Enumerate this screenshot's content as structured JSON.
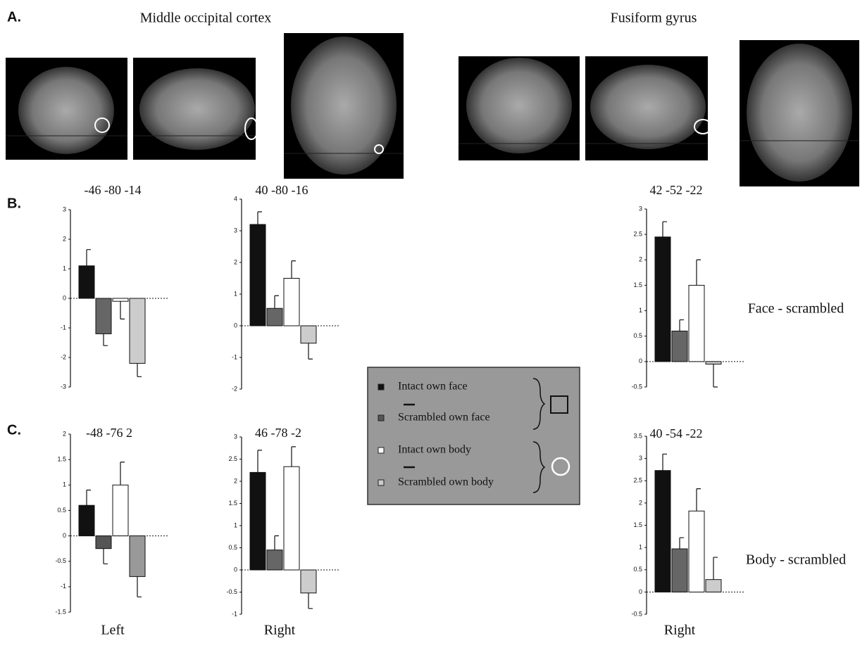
{
  "panels": {
    "a": "A.",
    "b": "B.",
    "c": "C.",
    "region_left": "Middle occipital cortex",
    "region_right": "Fusiform gyrus",
    "row_b": "Face - scrambled",
    "row_c": "Body - scrambled",
    "col_1": "Left",
    "col_2": "Right",
    "col_3": "Right"
  },
  "legend": {
    "items": [
      {
        "name": "Intact own face",
        "color": "#111111"
      },
      {
        "name": "Scrambled own face",
        "color": "#555555"
      },
      {
        "name": "Intact own body",
        "color": "#ffffff"
      },
      {
        "name": "Scrambled own body",
        "color": "#cccccc"
      }
    ]
  },
  "chart_data": [
    {
      "type": "bar",
      "title": "-46 -80 -14",
      "values": [
        1.1,
        -1.2,
        -0.1,
        -2.2
      ],
      "errors": [
        0.55,
        0.4,
        0.6,
        0.45
      ],
      "colors": [
        "#111111",
        "#666666",
        "#ffffff",
        "#cccccc"
      ],
      "ylim": [
        -3,
        3
      ],
      "yticks": [
        3,
        2,
        1,
        0,
        -1,
        -2,
        -3
      ]
    },
    {
      "type": "bar",
      "title": "40 -80 -16",
      "values": [
        3.2,
        0.55,
        1.5,
        -0.55
      ],
      "errors": [
        0.4,
        0.4,
        0.55,
        0.5
      ],
      "colors": [
        "#111111",
        "#666666",
        "#ffffff",
        "#cccccc"
      ],
      "ylim": [
        -2,
        4
      ],
      "yticks": [
        4,
        3,
        2,
        1,
        0,
        -1,
        -2
      ]
    },
    {
      "type": "bar",
      "title": "42 -52 -22",
      "values": [
        2.45,
        0.6,
        1.5,
        -0.05
      ],
      "errors": [
        0.3,
        0.22,
        0.5,
        0.45
      ],
      "colors": [
        "#111111",
        "#666666",
        "#ffffff",
        "#cccccc"
      ],
      "ylim": [
        -0.5,
        3
      ],
      "yticks": [
        3,
        2.5,
        2,
        1.5,
        1,
        0.5,
        0,
        -0.5
      ]
    },
    {
      "type": "bar",
      "title": "-48 -76 2",
      "values": [
        0.6,
        -0.25,
        1.0,
        -0.8
      ],
      "errors": [
        0.3,
        0.3,
        0.45,
        0.4
      ],
      "colors": [
        "#111111",
        "#555555",
        "#ffffff",
        "#999999"
      ],
      "ylim": [
        -1.5,
        2
      ],
      "yticks": [
        2,
        1.5,
        1,
        0.5,
        0,
        -0.5,
        -1,
        -1.5
      ]
    },
    {
      "type": "bar",
      "title": "46 -78 -2",
      "values": [
        2.2,
        0.45,
        2.33,
        -0.52
      ],
      "errors": [
        0.5,
        0.32,
        0.45,
        0.35
      ],
      "colors": [
        "#111111",
        "#666666",
        "#ffffff",
        "#cccccc"
      ],
      "ylim": [
        -1,
        3
      ],
      "yticks": [
        3,
        2.5,
        2,
        1.5,
        1,
        0.5,
        0,
        -0.5,
        -1
      ]
    },
    {
      "type": "bar",
      "title": "40 -54 -22",
      "values": [
        2.73,
        0.97,
        1.82,
        0.28
      ],
      "errors": [
        0.37,
        0.25,
        0.5,
        0.5
      ],
      "colors": [
        "#111111",
        "#666666",
        "#ffffff",
        "#cccccc"
      ],
      "ylim": [
        -0.5,
        3.5
      ],
      "yticks": [
        3.5,
        3,
        2.5,
        2,
        1.5,
        1,
        0.5,
        0,
        -0.5
      ]
    }
  ]
}
